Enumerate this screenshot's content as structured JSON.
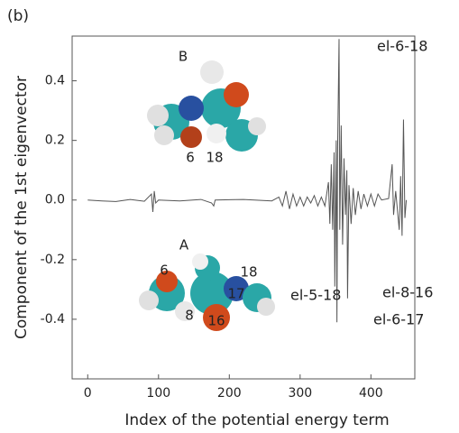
{
  "chart_data": {
    "type": "line",
    "panel_label": "(b)",
    "x_label": "Index of the potential energy term",
    "y_label": "Component of the 1st eigenvector",
    "xlim": [
      -22,
      462
    ],
    "ylim": [
      -0.6,
      0.55
    ],
    "xticks": [
      0,
      100,
      200,
      300,
      400
    ],
    "yticks": [
      -0.4,
      -0.2,
      {
        "value": 0,
        "label": "0.0"
      },
      0.2,
      0.4
    ],
    "color": "#555555",
    "x": [
      0,
      20,
      40,
      60,
      80,
      90,
      92,
      94,
      96,
      100,
      130,
      160,
      175,
      178,
      180,
      220,
      260,
      270,
      275,
      280,
      285,
      290,
      295,
      300,
      305,
      310,
      315,
      320,
      325,
      330,
      335,
      340,
      342,
      344,
      346,
      348,
      349,
      351,
      352,
      353,
      355,
      356,
      358,
      360,
      362,
      364,
      366,
      367,
      369,
      372,
      375,
      378,
      382,
      386,
      390,
      395,
      400,
      405,
      410,
      415,
      425,
      430,
      432,
      435,
      440,
      442,
      444,
      446,
      448,
      450
    ],
    "values": [
      0,
      -0.003,
      -0.005,
      0.002,
      -0.004,
      0.02,
      -0.04,
      0.03,
      -0.01,
      0,
      -0.003,
      0.002,
      -0.01,
      -0.02,
      0,
      0.002,
      -0.003,
      0.01,
      -0.02,
      0.03,
      -0.03,
      0.02,
      -0.02,
      0.01,
      -0.02,
      0.01,
      -0.01,
      0.015,
      -0.02,
      0.01,
      -0.02,
      0.06,
      -0.08,
      0.12,
      -0.1,
      0.16,
      -0.29,
      0.2,
      -0.41,
      0.18,
      0.54,
      -0.1,
      0.25,
      -0.15,
      0.14,
      -0.05,
      0.1,
      -0.33,
      0.05,
      -0.08,
      0.04,
      -0.05,
      0.03,
      -0.03,
      0.02,
      -0.02,
      0.02,
      -0.02,
      0.02,
      0,
      0.005,
      0.12,
      -0.05,
      0.03,
      -0.1,
      0.08,
      -0.12,
      0.27,
      -0.06,
      0
    ],
    "annotations": [
      "el-6-18",
      "el-5-18",
      "el-6-17",
      "el-8-16"
    ],
    "inset_labels": [
      "B",
      "6",
      "18",
      "A",
      "6",
      "18",
      "17",
      "8",
      "16"
    ]
  }
}
